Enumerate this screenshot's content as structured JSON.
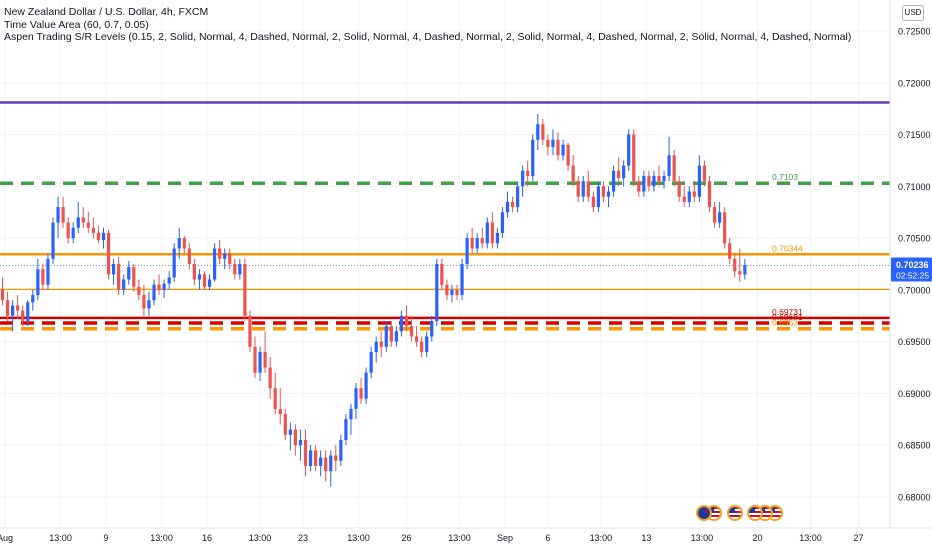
{
  "legend": {
    "symbol": "New Zealand Dollar / U.S. Dollar, 4h, FXCM",
    "indicator1": "Time Value Area (60, 0.7, 0.05)",
    "indicator2": "Aspen Trading S/R Levels (0.15, 2, Solid, Normal, 4, Dashed, Normal, 2, Solid, Normal, 4, Dashed, Normal, 2, Solid, Normal, 4, Dashed, Normal, 2, Solid, Normal, 4, Dashed, Normal)"
  },
  "currency_button": "USD",
  "colors": {
    "up": "#2962ff",
    "down": "#ef5350",
    "purple": "#673ab7",
    "green": "#43a047",
    "orange": "#ff9800",
    "red": "#d50000",
    "axis_text": "#131722",
    "price_tag": "#2962ff"
  },
  "chart_data": {
    "type": "candlestick",
    "symbol": "NZDUSD",
    "timeframe": "4h",
    "y_axis": {
      "range": [
        0.677,
        0.728
      ],
      "ticks": [
        "0.72500",
        "0.72000",
        "0.71500",
        "0.71000",
        "0.70500",
        "0.70000",
        "0.69500",
        "0.69000",
        "0.68500",
        "0.68000"
      ]
    },
    "x_axis": {
      "bar_range": [
        0,
        150
      ],
      "ticks": [
        {
          "label": "Aug",
          "bar": 0.5
        },
        {
          "label": "13:00",
          "bar": 11.5
        },
        {
          "label": "9",
          "bar": 20.5
        },
        {
          "label": "13:00",
          "bar": 31.5
        },
        {
          "label": "16",
          "bar": 40.5
        },
        {
          "label": "13:00",
          "bar": 51
        },
        {
          "label": "23",
          "bar": 59.5
        },
        {
          "label": "13:00",
          "bar": 70.5
        },
        {
          "label": "26",
          "bar": 80
        },
        {
          "label": "13:00",
          "bar": 90.5
        },
        {
          "label": "Sep",
          "bar": 99.5
        },
        {
          "label": "6",
          "bar": 108
        },
        {
          "label": "13:00",
          "bar": 118.5
        },
        {
          "label": "13",
          "bar": 127.5
        },
        {
          "label": "13:00",
          "bar": 138.5
        },
        {
          "label": "20",
          "bar": 149.5
        },
        {
          "label": "13:00",
          "bar": 160
        },
        {
          "label": "27",
          "bar": 169.5
        }
      ]
    },
    "price_tag": {
      "price": "0.70236",
      "countdown": "02:52:25",
      "value": 0.70236
    },
    "levels": [
      {
        "value": 0.7181,
        "color": "#673ab7",
        "style": "solid",
        "label": ""
      },
      {
        "value": 0.7103,
        "color": "#43a047",
        "style": "dashed",
        "label": "0.7103"
      },
      {
        "value": 0.70344,
        "color": "#ff9800",
        "style": "solid",
        "label": "0.70344"
      },
      {
        "value": 0.70005,
        "color": "#ff9800",
        "style": "solid-thin",
        "label": ""
      },
      {
        "value": 0.6973,
        "color": "#d50000",
        "style": "solid",
        "label": "0.69731"
      },
      {
        "value": 0.6968,
        "color": "#d50000",
        "style": "dashed",
        "label": "0.69681"
      },
      {
        "value": 0.69625,
        "color": "#ff9800",
        "style": "dashed",
        "label": "0.6963"
      }
    ],
    "last_price_line": 0.70236,
    "candles": [
      [
        0.7,
        0.7012,
        0.6985,
        0.699
      ],
      [
        0.699,
        0.6998,
        0.697,
        0.6975
      ],
      [
        0.6975,
        0.699,
        0.696,
        0.6985
      ],
      [
        0.6985,
        0.6995,
        0.6972,
        0.698
      ],
      [
        0.698,
        0.6985,
        0.6965,
        0.697
      ],
      [
        0.697,
        0.699,
        0.6965,
        0.6988
      ],
      [
        0.6988,
        0.7,
        0.698,
        0.6995
      ],
      [
        0.6995,
        0.703,
        0.699,
        0.702
      ],
      [
        0.702,
        0.7025,
        0.7,
        0.7005
      ],
      [
        0.7005,
        0.7035,
        0.7,
        0.703
      ],
      [
        0.703,
        0.707,
        0.7025,
        0.7065
      ],
      [
        0.7065,
        0.709,
        0.705,
        0.708
      ],
      [
        0.708,
        0.709,
        0.706,
        0.7065
      ],
      [
        0.7065,
        0.707,
        0.7045,
        0.705
      ],
      [
        0.705,
        0.7065,
        0.7045,
        0.706
      ],
      [
        0.706,
        0.7085,
        0.7055,
        0.707
      ],
      [
        0.707,
        0.708,
        0.706,
        0.7065
      ],
      [
        0.7065,
        0.7075,
        0.7055,
        0.706
      ],
      [
        0.706,
        0.707,
        0.705,
        0.7055
      ],
      [
        0.7055,
        0.7062,
        0.7045,
        0.7048
      ],
      [
        0.7048,
        0.706,
        0.704,
        0.7055
      ],
      [
        0.7055,
        0.7058,
        0.701,
        0.7015
      ],
      [
        0.7015,
        0.703,
        0.7005,
        0.7025
      ],
      [
        0.7025,
        0.7032,
        0.6995,
        0.7
      ],
      [
        0.7,
        0.7015,
        0.6995,
        0.701
      ],
      [
        0.701,
        0.7028,
        0.7005,
        0.7022
      ],
      [
        0.7022,
        0.7025,
        0.6998,
        0.7003
      ],
      [
        0.7003,
        0.701,
        0.699,
        0.6995
      ],
      [
        0.6995,
        0.7005,
        0.6975,
        0.6982
      ],
      [
        0.6982,
        0.6998,
        0.6975,
        0.699
      ],
      [
        0.699,
        0.701,
        0.6985,
        0.7005
      ],
      [
        0.7005,
        0.7015,
        0.6995,
        0.7
      ],
      [
        0.7,
        0.701,
        0.6992,
        0.7006
      ],
      [
        0.7006,
        0.7018,
        0.7,
        0.7012
      ],
      [
        0.7012,
        0.7045,
        0.7008,
        0.704
      ],
      [
        0.704,
        0.706,
        0.703,
        0.705
      ],
      [
        0.705,
        0.7052,
        0.7035,
        0.704
      ],
      [
        0.704,
        0.7045,
        0.702,
        0.7025
      ],
      [
        0.7025,
        0.703,
        0.7005,
        0.701
      ],
      [
        0.701,
        0.702,
        0.7,
        0.7015
      ],
      [
        0.7015,
        0.7018,
        0.7,
        0.7003
      ],
      [
        0.7003,
        0.7015,
        0.7,
        0.701
      ],
      [
        0.701,
        0.7045,
        0.7008,
        0.704
      ],
      [
        0.704,
        0.7048,
        0.7025,
        0.703
      ],
      [
        0.703,
        0.704,
        0.702,
        0.7035
      ],
      [
        0.7035,
        0.704,
        0.702,
        0.7025
      ],
      [
        0.7025,
        0.703,
        0.701,
        0.7015
      ],
      [
        0.7015,
        0.703,
        0.701,
        0.7025
      ],
      [
        0.7025,
        0.703,
        0.697,
        0.6975
      ],
      [
        0.6975,
        0.698,
        0.694,
        0.6945
      ],
      [
        0.6945,
        0.6955,
        0.6915,
        0.692
      ],
      [
        0.692,
        0.6945,
        0.6912,
        0.694
      ],
      [
        0.694,
        0.696,
        0.692,
        0.6925
      ],
      [
        0.6925,
        0.6935,
        0.6895,
        0.6905
      ],
      [
        0.6905,
        0.692,
        0.688,
        0.6885
      ],
      [
        0.6885,
        0.6905,
        0.687,
        0.688
      ],
      [
        0.688,
        0.6885,
        0.6855,
        0.686
      ],
      [
        0.686,
        0.6872,
        0.6845,
        0.6865
      ],
      [
        0.6865,
        0.687,
        0.684,
        0.685
      ],
      [
        0.685,
        0.6865,
        0.6835,
        0.6855
      ],
      [
        0.6855,
        0.6865,
        0.682,
        0.683
      ],
      [
        0.683,
        0.685,
        0.6825,
        0.6845
      ],
      [
        0.6845,
        0.685,
        0.6825,
        0.683
      ],
      [
        0.683,
        0.6845,
        0.682,
        0.6838
      ],
      [
        0.6838,
        0.6845,
        0.6815,
        0.6825
      ],
      [
        0.6825,
        0.6845,
        0.681,
        0.684
      ],
      [
        0.684,
        0.685,
        0.6825,
        0.6835
      ],
      [
        0.6835,
        0.686,
        0.683,
        0.6855
      ],
      [
        0.6855,
        0.688,
        0.685,
        0.6875
      ],
      [
        0.6875,
        0.689,
        0.686,
        0.6885
      ],
      [
        0.6885,
        0.691,
        0.6875,
        0.6905
      ],
      [
        0.6905,
        0.6915,
        0.689,
        0.6895
      ],
      [
        0.6895,
        0.6925,
        0.689,
        0.692
      ],
      [
        0.692,
        0.6945,
        0.6915,
        0.694
      ],
      [
        0.694,
        0.6955,
        0.693,
        0.695
      ],
      [
        0.695,
        0.696,
        0.6935,
        0.6945
      ],
      [
        0.6945,
        0.697,
        0.694,
        0.6965
      ],
      [
        0.6965,
        0.697,
        0.6945,
        0.695
      ],
      [
        0.695,
        0.6965,
        0.6945,
        0.696
      ],
      [
        0.696,
        0.698,
        0.6955,
        0.6975
      ],
      [
        0.6975,
        0.6985,
        0.696,
        0.6965
      ],
      [
        0.6965,
        0.6975,
        0.695,
        0.6955
      ],
      [
        0.6955,
        0.6965,
        0.6945,
        0.695
      ],
      [
        0.695,
        0.6955,
        0.6935,
        0.694
      ],
      [
        0.694,
        0.696,
        0.6935,
        0.6955
      ],
      [
        0.6955,
        0.6975,
        0.695,
        0.697
      ],
      [
        0.697,
        0.703,
        0.6965,
        0.7025
      ],
      [
        0.7025,
        0.703,
        0.7,
        0.7005
      ],
      [
        0.7005,
        0.701,
        0.699,
        0.6995
      ],
      [
        0.6995,
        0.7005,
        0.6988,
        0.7
      ],
      [
        0.7,
        0.7005,
        0.699,
        0.6995
      ],
      [
        0.6995,
        0.703,
        0.699,
        0.7025
      ],
      [
        0.7025,
        0.7055,
        0.702,
        0.705
      ],
      [
        0.705,
        0.706,
        0.7035,
        0.704
      ],
      [
        0.704,
        0.7055,
        0.7035,
        0.705
      ],
      [
        0.705,
        0.706,
        0.704,
        0.7045
      ],
      [
        0.7045,
        0.707,
        0.704,
        0.7065
      ],
      [
        0.7065,
        0.7075,
        0.704,
        0.7045
      ],
      [
        0.7045,
        0.706,
        0.704,
        0.7055
      ],
      [
        0.7055,
        0.708,
        0.705,
        0.7075
      ],
      [
        0.7075,
        0.7095,
        0.707,
        0.7085
      ],
      [
        0.7085,
        0.709,
        0.7075,
        0.708
      ],
      [
        0.708,
        0.7105,
        0.7075,
        0.71
      ],
      [
        0.71,
        0.712,
        0.709,
        0.7115
      ],
      [
        0.7115,
        0.7125,
        0.71,
        0.711
      ],
      [
        0.711,
        0.715,
        0.7105,
        0.7145
      ],
      [
        0.7145,
        0.717,
        0.7135,
        0.716
      ],
      [
        0.716,
        0.7165,
        0.714,
        0.7145
      ],
      [
        0.7145,
        0.715,
        0.713,
        0.7138
      ],
      [
        0.7138,
        0.7155,
        0.713,
        0.7145
      ],
      [
        0.7145,
        0.7152,
        0.7125,
        0.713
      ],
      [
        0.713,
        0.7145,
        0.7125,
        0.714
      ],
      [
        0.714,
        0.7142,
        0.7115,
        0.712
      ],
      [
        0.712,
        0.713,
        0.71,
        0.7105
      ],
      [
        0.7105,
        0.711,
        0.7085,
        0.709
      ],
      [
        0.709,
        0.711,
        0.7085,
        0.7105
      ],
      [
        0.7105,
        0.7115,
        0.7085,
        0.709
      ],
      [
        0.709,
        0.7095,
        0.7075,
        0.708
      ],
      [
        0.708,
        0.7105,
        0.7075,
        0.71
      ],
      [
        0.71,
        0.7105,
        0.7085,
        0.709
      ],
      [
        0.709,
        0.71,
        0.708,
        0.7095
      ],
      [
        0.7095,
        0.712,
        0.709,
        0.7115
      ],
      [
        0.7115,
        0.7128,
        0.71,
        0.7108
      ],
      [
        0.7108,
        0.7125,
        0.71,
        0.712
      ],
      [
        0.712,
        0.7155,
        0.7115,
        0.715
      ],
      [
        0.715,
        0.7155,
        0.71,
        0.7105
      ],
      [
        0.7105,
        0.711,
        0.709,
        0.7095
      ],
      [
        0.7095,
        0.7115,
        0.709,
        0.711
      ],
      [
        0.711,
        0.7115,
        0.7095,
        0.71
      ],
      [
        0.71,
        0.7115,
        0.7095,
        0.711
      ],
      [
        0.711,
        0.712,
        0.71,
        0.7105
      ],
      [
        0.7105,
        0.7115,
        0.7098,
        0.711
      ],
      [
        0.711,
        0.7148,
        0.7105,
        0.713
      ],
      [
        0.713,
        0.7135,
        0.71,
        0.7105
      ],
      [
        0.7105,
        0.711,
        0.7085,
        0.709
      ],
      [
        0.709,
        0.71,
        0.708,
        0.7085
      ],
      [
        0.7085,
        0.71,
        0.708,
        0.7095
      ],
      [
        0.7095,
        0.7105,
        0.7085,
        0.709
      ],
      [
        0.709,
        0.713,
        0.7085,
        0.712
      ],
      [
        0.712,
        0.7125,
        0.71,
        0.7105
      ],
      [
        0.7105,
        0.711,
        0.7075,
        0.708
      ],
      [
        0.708,
        0.7085,
        0.706,
        0.7065
      ],
      [
        0.7065,
        0.7085,
        0.706,
        0.7075
      ],
      [
        0.7075,
        0.708,
        0.704,
        0.7045
      ],
      [
        0.7045,
        0.705,
        0.7025,
        0.703
      ],
      [
        0.703,
        0.7035,
        0.7012,
        0.7018
      ],
      [
        0.7018,
        0.704,
        0.7008,
        0.7015
      ],
      [
        0.7015,
        0.703,
        0.701,
        0.7024
      ]
    ]
  },
  "events": [
    {
      "bar": 139,
      "flags": [
        "nz",
        "us"
      ]
    },
    {
      "bar": 145,
      "flags": [
        "us"
      ]
    },
    {
      "bar": 149,
      "flags": [
        "us",
        "us",
        "us"
      ]
    }
  ]
}
